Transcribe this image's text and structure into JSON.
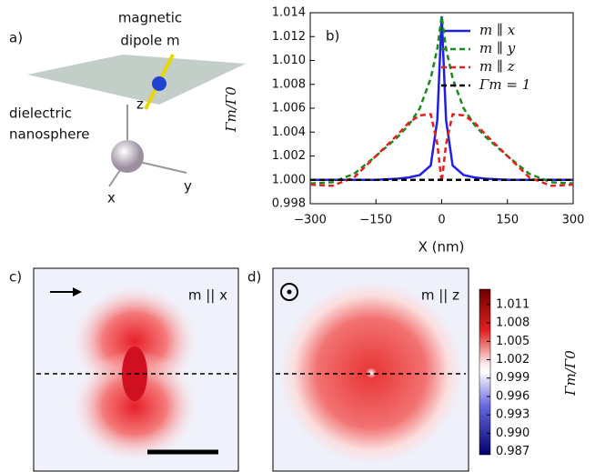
{
  "panel_a": {
    "label": "a)",
    "dipole_label": [
      "magnetic",
      "dipole m"
    ],
    "sphere_label": [
      "dielectric",
      "nanosphere"
    ],
    "axes": [
      "z",
      "x",
      "y"
    ]
  },
  "chart_data": {
    "type": "line",
    "panel_label": "b)",
    "xlabel": "X (nm)",
    "ylabel": "Γm/Γ0",
    "x": [
      -300,
      -250,
      -200,
      -150,
      -100,
      -75,
      -50,
      -25,
      -10,
      0,
      10,
      25,
      50,
      75,
      100,
      150,
      200,
      250,
      300
    ],
    "xlim": [
      -300,
      300
    ],
    "xticks": [
      {
        "value": -300,
        "label": "−300"
      },
      {
        "value": -150,
        "label": "−150"
      },
      0,
      150,
      300
    ],
    "ylim": [
      0.998,
      1.014
    ],
    "yticks": [
      {
        "value": 0.998,
        "label": "0.998"
      },
      {
        "value": 1.0,
        "label": "1.000"
      },
      {
        "value": 1.002,
        "label": "1.002"
      },
      {
        "value": 1.004,
        "label": "1.004"
      },
      {
        "value": 1.006,
        "label": "1.006"
      },
      {
        "value": 1.008,
        "label": "1.008"
      },
      {
        "value": 1.01,
        "label": "1.010"
      },
      {
        "value": 1.012,
        "label": "1.012"
      },
      {
        "value": 1.014,
        "label": "1.014"
      }
    ],
    "legend": "upper right",
    "series": [
      {
        "name": "m ∥ x",
        "color": "#1f1fe6",
        "dashed": false,
        "values": [
          1.0,
          1.0,
          1.0,
          1.0,
          1.0001,
          1.0002,
          1.0004,
          1.0012,
          1.005,
          1.0137,
          1.005,
          1.0012,
          1.0004,
          1.0002,
          1.0001,
          1.0,
          1.0,
          1.0,
          1.0
        ]
      },
      {
        "name": "m ∥ y",
        "color": "#1a8a1a",
        "dashed": true,
        "values": [
          0.9997,
          0.9998,
          1.0005,
          1.002,
          1.0036,
          1.0046,
          1.006,
          1.0085,
          1.011,
          1.0137,
          1.011,
          1.0085,
          1.006,
          1.0046,
          1.0036,
          1.002,
          1.0005,
          0.9998,
          0.9997
        ]
      },
      {
        "name": "m ∥ z",
        "color": "#e62020",
        "dashed": true,
        "values": [
          0.9996,
          0.9995,
          1.0002,
          1.002,
          1.0038,
          1.0048,
          1.0054,
          1.0055,
          1.003,
          0.9998,
          1.003,
          1.0055,
          1.0054,
          1.0048,
          1.0038,
          1.002,
          1.0002,
          0.9995,
          0.9996
        ]
      },
      {
        "name": "Γm = 1",
        "color": "#000000",
        "dashed": true,
        "values": [
          1,
          1,
          1,
          1,
          1,
          1,
          1,
          1,
          1,
          1,
          1,
          1,
          1,
          1,
          1,
          1,
          1,
          1,
          1
        ]
      }
    ]
  },
  "panel_c": {
    "label": "c)",
    "title": "m || x"
  },
  "panel_d": {
    "label": "d)",
    "title": "m || z"
  },
  "colorbar": {
    "label": "Γm/Γ0",
    "lim": [
      0.9865,
      1.0135
    ],
    "ticks": [
      {
        "value": 1.011,
        "label": "1.011"
      },
      {
        "value": 1.008,
        "label": "1.008"
      },
      {
        "value": 1.005,
        "label": "1.005"
      },
      {
        "value": 1.002,
        "label": "1.002"
      },
      {
        "value": 0.999,
        "label": "0.999"
      },
      {
        "value": 0.996,
        "label": "0.996"
      },
      {
        "value": 0.993,
        "label": "0.993"
      },
      {
        "value": 0.99,
        "label": "0.990"
      },
      {
        "value": 0.987,
        "label": "0.987"
      }
    ]
  }
}
